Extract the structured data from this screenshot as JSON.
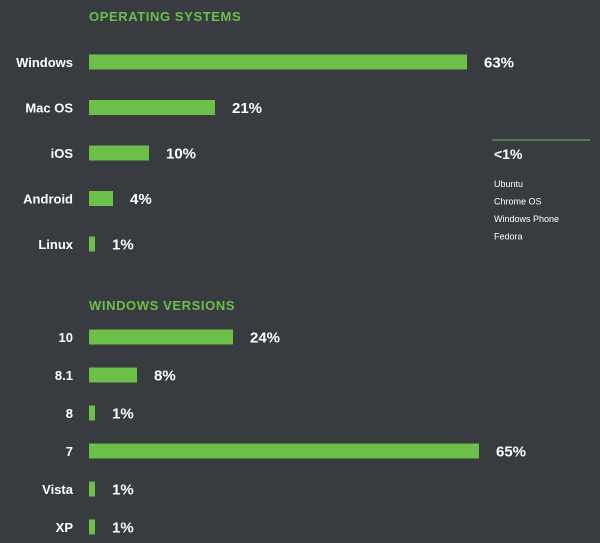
{
  "colors": {
    "background": "#383b3f",
    "bar": "#6cc04a",
    "accent_text": "#6cc04a",
    "text": "#ffffff"
  },
  "chart_data": [
    {
      "type": "bar",
      "orientation": "horizontal",
      "title": "OPERATING SYSTEMS",
      "categories": [
        "Windows",
        "Mac OS",
        "iOS",
        "Android",
        "Linux"
      ],
      "values": [
        63,
        21,
        10,
        4,
        1
      ],
      "value_labels": [
        "63%",
        "21%",
        "10%",
        "4%",
        "1%"
      ],
      "xlim": [
        0,
        100
      ],
      "grid": false,
      "legend": "none"
    },
    {
      "type": "bar",
      "orientation": "horizontal",
      "title": "WINDOWS VERSIONS",
      "categories": [
        "10",
        "8.1",
        "8",
        "7",
        "Vista",
        "XP"
      ],
      "values": [
        24,
        8,
        1,
        65,
        1,
        1
      ],
      "value_labels": [
        "24%",
        "8%",
        "1%",
        "65%",
        "1%",
        "1%"
      ],
      "xlim": [
        0,
        100
      ],
      "grid": false,
      "legend": "none"
    }
  ],
  "other_os": {
    "heading": "<1%",
    "items": [
      "Ubuntu",
      "Chrome OS",
      "Windows Phone",
      "Fedora"
    ]
  }
}
